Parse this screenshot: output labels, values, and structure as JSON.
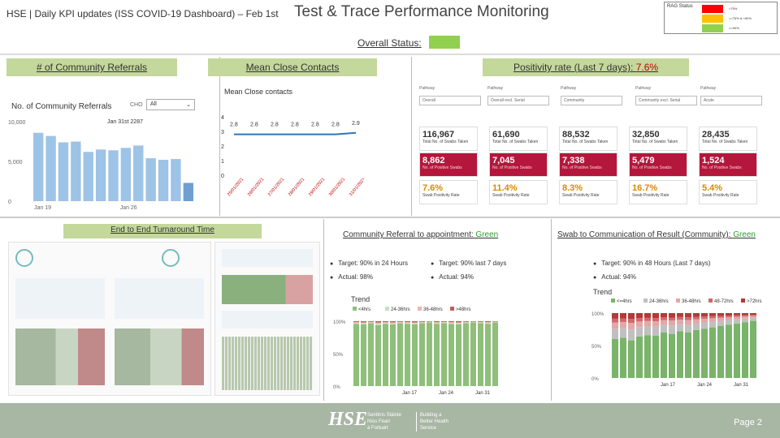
{
  "header": {
    "left_title": "HSE | Daily KPI updates (ISS COVID-19 Dashboard) – Feb 1st",
    "main_title": "Test & Trace Performance Monitoring"
  },
  "rag": {
    "label": "RAG Status",
    "items": [
      {
        "color": "#ff0000",
        "text": "<75%"
      },
      {
        "color": "#ffc000",
        "text": ">=75% & <90%"
      },
      {
        "color": "#92d050",
        "text": ">=90%"
      }
    ]
  },
  "overall": {
    "label": "Overall Status:",
    "color": "#92d050"
  },
  "tabs": {
    "referrals": "# of Community Referrals",
    "close_contacts": "Mean Close Contacts",
    "positivity_prefix": "Positivity rate (Last 7 days): ",
    "positivity_value": "7.6%",
    "turnaround": "End to End Turnaround Time"
  },
  "referrals_chart": {
    "title": "No. of Community Referrals",
    "ccg_label": "CHO",
    "ccg_value": "All",
    "annotation": "Jan 31st 2287",
    "yticks": [
      "10,000",
      "5,000",
      "0"
    ],
    "xticks": [
      "Jan 19",
      "Jan 26"
    ],
    "values": [
      8600,
      8200,
      7400,
      7500,
      6200,
      6500,
      6400,
      6700,
      7000,
      5400,
      5200,
      5300,
      2300
    ]
  },
  "close_contacts_chart": {
    "title": "Mean Close contacts",
    "yticks": [
      "4",
      "3",
      "2",
      "1",
      "0"
    ],
    "values": [
      2.8,
      2.8,
      2.8,
      2.8,
      2.8,
      2.8,
      2.9
    ],
    "xlabels": [
      "25/01/2021",
      "26/01/2021",
      "27/01/2021",
      "28/01/2021",
      "29/01/2021",
      "30/01/2021",
      "31/01/2021"
    ]
  },
  "positivity_panel": {
    "filters": [
      {
        "label": "Pathway",
        "value": "Overall"
      },
      {
        "label": "Pathway",
        "value": "Overall excl. Serial"
      },
      {
        "label": "Pathway",
        "value": "Community"
      },
      {
        "label": "Pathway",
        "value": "Community excl. Serial"
      },
      {
        "label": "Pathway",
        "value": "Acute"
      }
    ],
    "swabs": [
      {
        "v": "116,967",
        "c": "Total No. of Swabs Taken"
      },
      {
        "v": "61,690",
        "c": "Total No. of Swabs Taken"
      },
      {
        "v": "88,532",
        "c": "Total No. of Swabs Taken"
      },
      {
        "v": "32,850",
        "c": "Total No. of Swabs Taken"
      },
      {
        "v": "28,435",
        "c": "Total No. of Swabs Taken"
      }
    ],
    "positives": [
      {
        "v": "8,862",
        "c": "No. of Positive Swabs"
      },
      {
        "v": "7,045",
        "c": "No. of Positive Swabs"
      },
      {
        "v": "7,338",
        "c": "No. of Positive Swabs"
      },
      {
        "v": "5,479",
        "c": "No. of Positive Swabs"
      },
      {
        "v": "1,524",
        "c": "No. of Positive Swabs"
      }
    ],
    "rates": [
      {
        "v": "7.6%",
        "c": "Swab Positivity Rate"
      },
      {
        "v": "11.4%",
        "c": "Swab Positivity Rate"
      },
      {
        "v": "8.3%",
        "c": "Swab Positivity Rate"
      },
      {
        "v": "16.7%",
        "c": "Swab Positivity Rate"
      },
      {
        "v": "5.4%",
        "c": "Swab Positivity Rate"
      }
    ]
  },
  "community_referral": {
    "heading": "Community Referral to appointment: ",
    "status": "Green",
    "target1": "Target: 90% in 24 Hours",
    "target2": "Target: 90% last 7 days",
    "actual1": "Actual: 98%",
    "actual2": "Actual: 94%",
    "trend": "Trend",
    "legend": [
      "<4hrs",
      "24-36hrs",
      "36-48hrs",
      ">48hrs"
    ],
    "yticks": [
      "100%",
      "50%",
      "0%"
    ],
    "xticks": [
      "Jan 17",
      "Jan 24",
      "Jan 31"
    ]
  },
  "swab_result": {
    "heading": "Swab to Communication of Result (Community): ",
    "status": "Green",
    "target": "Target: 90% in 48 Hours (Last 7 days)",
    "actual": "Actual: 94%",
    "trend": "Trend",
    "legend": [
      "<=4hrs",
      "24-36hrs",
      "36-48hrs",
      "48-72hrs",
      ">72hrs"
    ],
    "yticks": [
      "100%",
      "50%",
      "0%"
    ],
    "xticks": [
      "Jan 17",
      "Jan 24",
      "Jan 31"
    ]
  },
  "footer": {
    "hse": "HSE",
    "org": "Seirbhís Sláinte\nNíos Fearr\ná Forbairt",
    "tagline": "Building a\nBetter Health\nService",
    "page": "Page 2"
  }
}
